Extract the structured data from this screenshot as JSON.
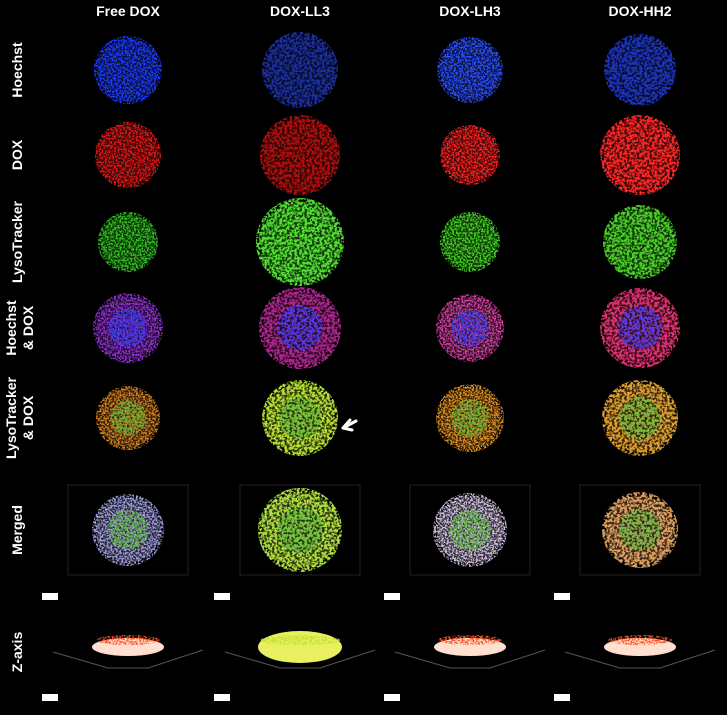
{
  "columns": [
    "Free DOX",
    "DOX-LL3",
    "DOX-LH3",
    "DOX-HH2"
  ],
  "rows": [
    [
      "Hoechst"
    ],
    [
      "DOX"
    ],
    [
      "LysoTracker"
    ],
    [
      "Hoechst",
      "& DOX"
    ],
    [
      "LysoTracker",
      "& DOX"
    ],
    [
      "Merged"
    ],
    [
      "Z-axis"
    ]
  ]
}
